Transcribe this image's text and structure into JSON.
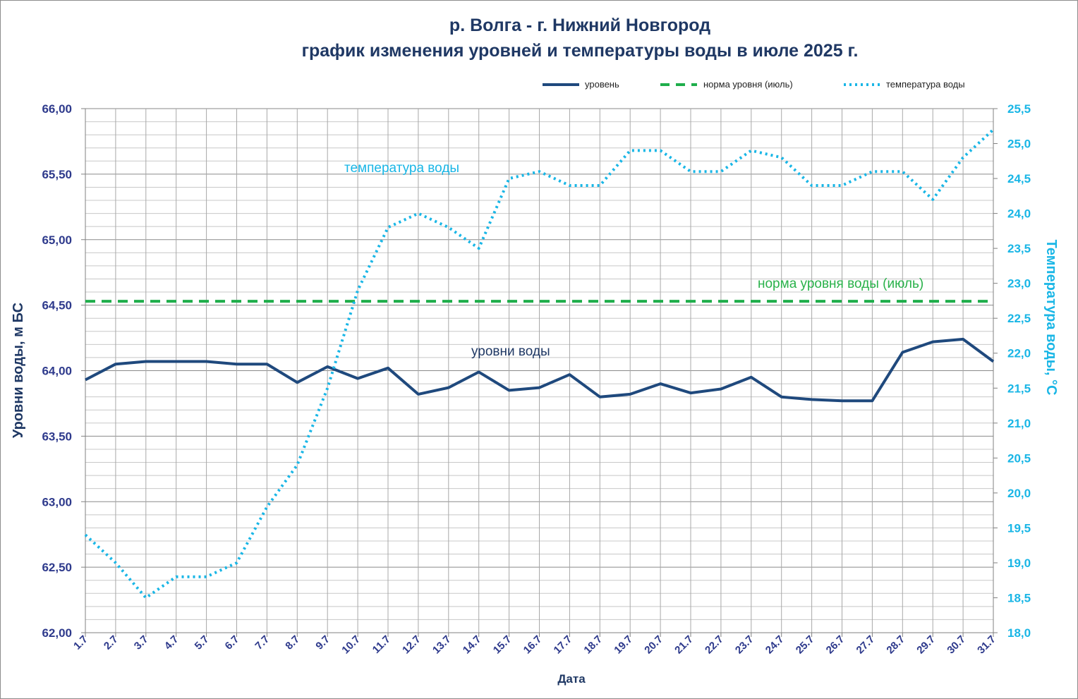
{
  "chart_data": {
    "type": "line",
    "title_line1": "р. Волга - г. Нижний Новгород",
    "title_line2": "график изменения уровней и температуры  воды в июле 2025 г.",
    "xlabel": "Дата",
    "ylabel_left": "Уровни воды, м БС",
    "ylabel_right": "Температура воды, °С",
    "categories": [
      "1.7",
      "2.7",
      "3.7",
      "4.7",
      "5.7",
      "6.7",
      "7.7",
      "8.7",
      "9.7",
      "10.7",
      "11.7",
      "12.7",
      "13.7",
      "14.7",
      "15.7",
      "16.7",
      "17.7",
      "18.7",
      "19.7",
      "20.7",
      "21.7",
      "22.7",
      "23.7",
      "24.7",
      "25.7",
      "26.7",
      "27.7",
      "28.7",
      "29.7",
      "30.7",
      "31.7"
    ],
    "ylim_left": [
      62.0,
      66.0
    ],
    "ylim_right": [
      18.0,
      25.5
    ],
    "yticks_left": [
      "62,00",
      "62,50",
      "63,00",
      "63,50",
      "64,00",
      "64,50",
      "65,00",
      "65,50",
      "66,00"
    ],
    "yticks_right": [
      "18,0",
      "18,5",
      "19,0",
      "19,5",
      "20,0",
      "20,5",
      "21,0",
      "21,5",
      "22,0",
      "22,5",
      "23,0",
      "23,5",
      "24,0",
      "24,5",
      "25,0",
      "25,5"
    ],
    "grid": true,
    "legend_position": "top-right",
    "series": [
      {
        "name": "уровень",
        "axis": "left",
        "color": "#1f497d",
        "style": "solid",
        "values": [
          63.93,
          64.05,
          64.07,
          64.07,
          64.07,
          64.05,
          64.05,
          63.91,
          64.03,
          63.94,
          64.02,
          63.82,
          63.87,
          63.99,
          63.85,
          63.87,
          63.97,
          63.8,
          63.82,
          63.9,
          63.83,
          63.86,
          63.95,
          63.8,
          63.78,
          63.77,
          63.77,
          64.14,
          64.22,
          64.24,
          64.07
        ]
      },
      {
        "name": "норма уровня (июль)",
        "axis": "left",
        "color": "#1fae4b",
        "style": "dashed",
        "values": [
          64.53,
          64.53,
          64.53,
          64.53,
          64.53,
          64.53,
          64.53,
          64.53,
          64.53,
          64.53,
          64.53,
          64.53,
          64.53,
          64.53,
          64.53,
          64.53,
          64.53,
          64.53,
          64.53,
          64.53,
          64.53,
          64.53,
          64.53,
          64.53,
          64.53,
          64.53,
          64.53,
          64.53,
          64.53,
          64.53,
          64.53
        ]
      },
      {
        "name": "температура  воды",
        "axis": "right",
        "color": "#19b6e6",
        "style": "dotted",
        "values": [
          19.4,
          19.0,
          18.5,
          18.8,
          18.8,
          19.0,
          19.8,
          20.4,
          21.5,
          22.9,
          23.8,
          24.0,
          23.8,
          23.5,
          24.5,
          24.6,
          24.4,
          24.4,
          24.9,
          24.9,
          24.6,
          24.6,
          24.9,
          24.8,
          24.4,
          24.4,
          24.6,
          24.6,
          24.2,
          24.8,
          25.2
        ]
      }
    ],
    "annotations": {
      "temperature": "температура воды",
      "norm": "норма уровня воды  (июль)",
      "level": "уровни воды"
    }
  }
}
